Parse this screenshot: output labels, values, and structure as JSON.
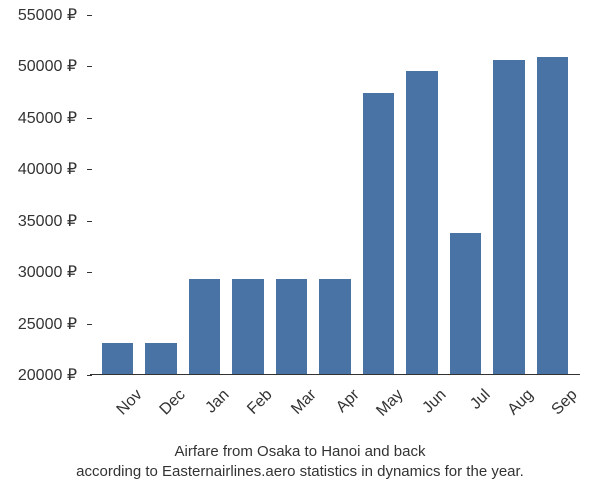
{
  "chart": {
    "type": "bar",
    "categories": [
      "Nov",
      "Dec",
      "Jan",
      "Feb",
      "Mar",
      "Apr",
      "May",
      "Jun",
      "Jul",
      "Aug",
      "Sep"
    ],
    "values": [
      23000,
      23000,
      29200,
      29200,
      29200,
      29200,
      47300,
      49500,
      33700,
      50500,
      50800
    ],
    "bar_color": "#4a73a5",
    "background_color": "#ffffff",
    "axis_color": "#333333",
    "text_color": "#333333",
    "y_min": 20000,
    "y_max": 55000,
    "y_tick_step": 5000,
    "y_ticks": [
      20000,
      25000,
      30000,
      35000,
      40000,
      45000,
      50000,
      55000
    ],
    "y_tick_labels": [
      "20000 ₽",
      "25000 ₽",
      "30000 ₽",
      "35000 ₽",
      "40000 ₽",
      "45000 ₽",
      "50000 ₽",
      "55000 ₽"
    ],
    "tick_fontsize": 16,
    "caption_fontsize": 15,
    "x_label_rotation": -45,
    "bar_gap_ratio": 0.27
  },
  "caption": {
    "line1": "Airfare from Osaka to Hanoi and back",
    "line2": "according to Easternairlines.aero statistics in dynamics for the year."
  }
}
